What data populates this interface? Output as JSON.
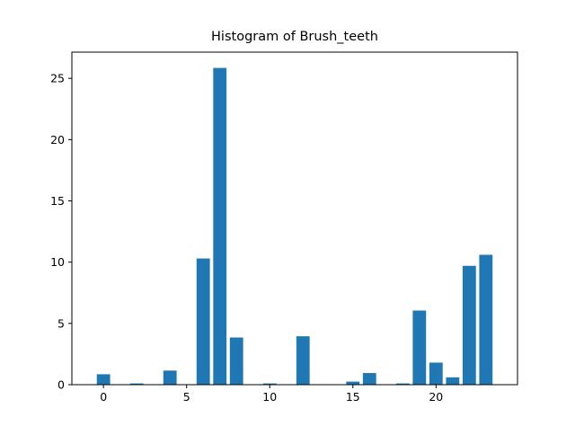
{
  "chart_data": {
    "type": "bar",
    "title": "Histogram of Brush_teeth",
    "xlabel": "",
    "ylabel": "",
    "x": [
      0,
      1,
      2,
      3,
      4,
      5,
      6,
      7,
      8,
      9,
      10,
      11,
      12,
      13,
      14,
      15,
      16,
      17,
      18,
      19,
      20,
      21,
      22,
      23
    ],
    "values": [
      0.85,
      0,
      0.1,
      0,
      1.15,
      0,
      10.3,
      25.85,
      3.85,
      0,
      0.1,
      0,
      3.95,
      0,
      0,
      0.25,
      0.95,
      0,
      0.1,
      6.05,
      1.8,
      0.6,
      9.7,
      10.6
    ],
    "xticks": [
      0,
      5,
      10,
      15,
      20
    ],
    "yticks": [
      0,
      5,
      10,
      15,
      20,
      25
    ],
    "xlim": [
      -1.9,
      24.9
    ],
    "ylim": [
      0,
      27.14
    ],
    "bar_width": 0.8,
    "color": "#1f77b4",
    "grid": false
  }
}
